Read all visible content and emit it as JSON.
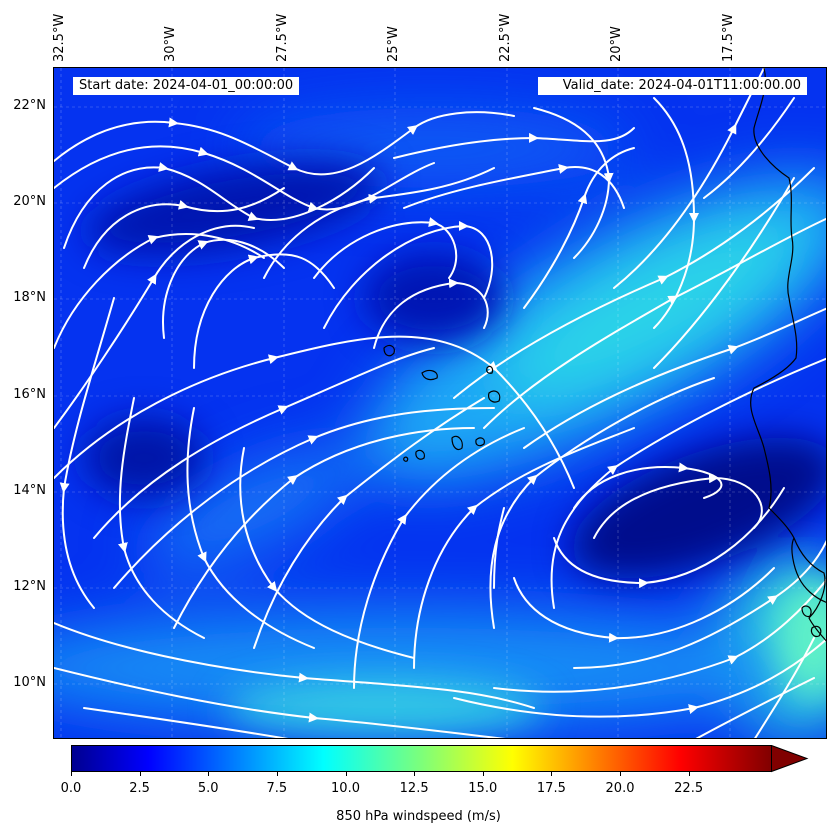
{
  "header": {
    "start_date": "Start date: 2024-04-01_00:00:00",
    "valid_date": "Valid_date: 2024-04-01T11:00:00.00"
  },
  "map": {
    "lon_labels": [
      "32.5°W",
      "30°W",
      "27.5°W",
      "25°W",
      "22.5°W",
      "20°W",
      "17.5°W"
    ],
    "lat_labels": [
      "22°N",
      "20°N",
      "18°N",
      "16°N",
      "14°N",
      "12°N",
      "10°N"
    ],
    "lon_range": [
      -32.5,
      -15.2
    ],
    "lat_range": [
      8.9,
      22.8
    ],
    "field": "850 hPa windspeed",
    "streamline_color": "#ffffff",
    "coastline_color": "#000000"
  },
  "colorbar": {
    "label": "850 hPa windspeed (m/s)",
    "ticks": [
      "0.0",
      "2.5",
      "5.0",
      "7.5",
      "10.0",
      "12.5",
      "15.0",
      "17.5",
      "20.0",
      "22.5"
    ],
    "tick_values": [
      0,
      2.5,
      5,
      7.5,
      10,
      12.5,
      15,
      17.5,
      20,
      22.5
    ],
    "range": [
      0,
      25.5
    ],
    "extend": "max",
    "colormap": "jet"
  }
}
